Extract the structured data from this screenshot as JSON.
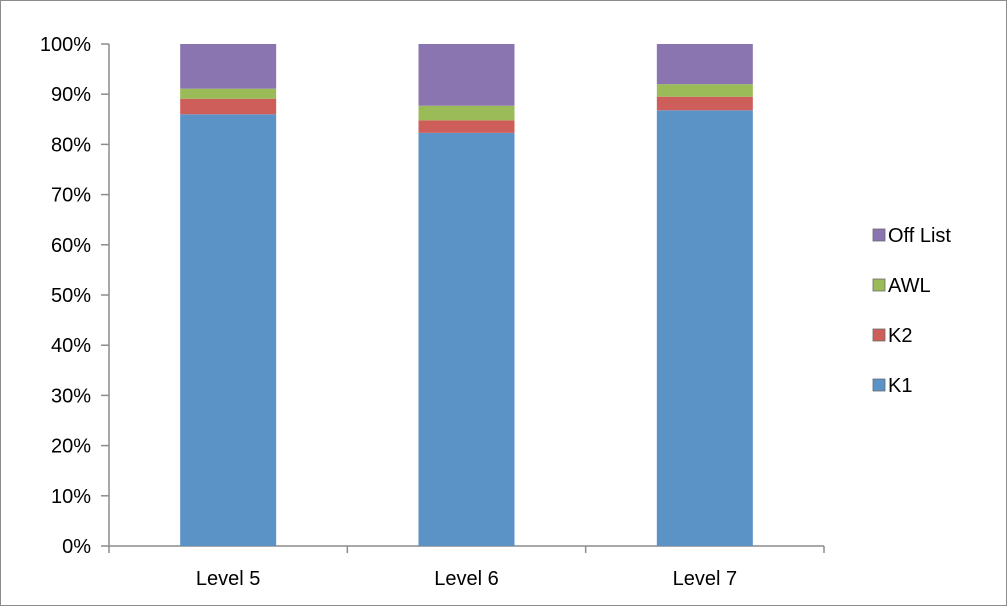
{
  "chart_data": {
    "type": "bar",
    "stacked": "percent",
    "categories": [
      "Level 5",
      "Level 6",
      "Level 7"
    ],
    "series": [
      {
        "name": "K1",
        "values": [
          86.0,
          82.3,
          86.8
        ],
        "color": "#5B93C6"
      },
      {
        "name": "K2",
        "values": [
          3.1,
          2.5,
          2.7
        ],
        "color": "#CE5E5A"
      },
      {
        "name": "AWL",
        "values": [
          2.0,
          2.9,
          2.5
        ],
        "color": "#9BBB59"
      },
      {
        "name": "Off List",
        "values": [
          8.9,
          12.3,
          8.0
        ],
        "color": "#8B75B0"
      }
    ],
    "ylim": [
      0,
      100
    ],
    "yticks": [
      "0%",
      "10%",
      "20%",
      "30%",
      "40%",
      "50%",
      "60%",
      "70%",
      "80%",
      "90%",
      "100%"
    ],
    "title": "",
    "xlabel": "",
    "ylabel": "",
    "grid": false,
    "legend_position": "right",
    "legend_order": [
      "Off List",
      "AWL",
      "K2",
      "K1"
    ]
  }
}
